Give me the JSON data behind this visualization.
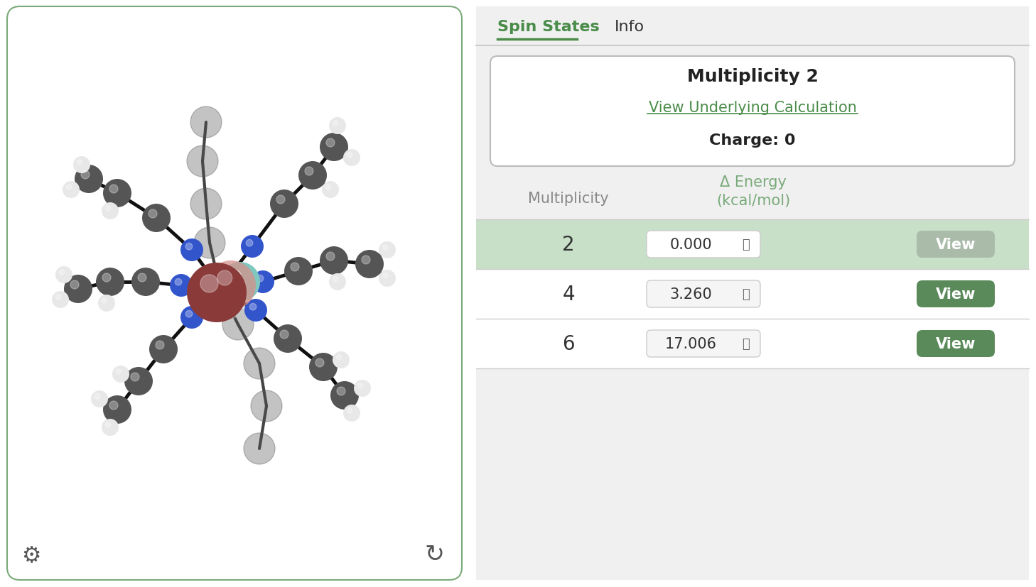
{
  "bg_color": "#ffffff",
  "left_panel_bg": "#ffffff",
  "outer_border_color": "#7aaa7a",
  "tab_spin_states_color": "#4a8c4a",
  "tab_info_color": "#333333",
  "header_color": "#7aaa7a",
  "multiplicity_header": "Multiplicity 2",
  "view_calc_text": "View Underlying Calculation",
  "charge_text": "Charge: 0",
  "col1_header": "Multiplicity",
  "col2_header": "Δ Energy\n(kcal/mol)",
  "rows": [
    {
      "multiplicity": "2",
      "energy": "0.000",
      "selected": true
    },
    {
      "multiplicity": "4",
      "energy": "3.260",
      "selected": false
    },
    {
      "multiplicity": "6",
      "energy": "17.006",
      "selected": false
    }
  ],
  "selected_row_bg": "#c8dfc8",
  "unselected_row_bg": "#ffffff",
  "text_color": "#333333",
  "gear_color": "#555555",
  "refresh_color": "#555555"
}
